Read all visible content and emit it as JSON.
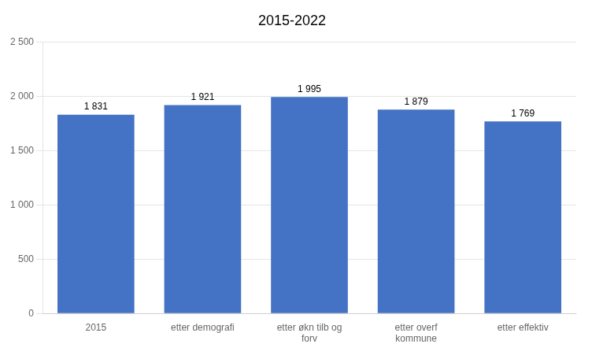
{
  "chart_data": {
    "type": "bar",
    "title": "2015-2022",
    "categories": [
      "2015",
      "etter demografi",
      "etter økn tilb og\nforv",
      "etter overf\nkommune",
      "etter effektiv"
    ],
    "values": [
      1831,
      1921,
      1995,
      1879,
      1769
    ],
    "value_labels": [
      "1 831",
      "1 921",
      "1 995",
      "1 879",
      "1 769"
    ],
    "data_labels": true,
    "color": "#4472C4",
    "ylim": [
      0,
      2500
    ],
    "yticks": [
      0,
      500,
      {
        "value": 1000,
        "label": "1 000"
      },
      {
        "value": 1500,
        "label": "1 500"
      },
      {
        "value": 2000,
        "label": "2 000"
      },
      {
        "value": 2500,
        "label": "2 500"
      }
    ],
    "grid": true
  }
}
